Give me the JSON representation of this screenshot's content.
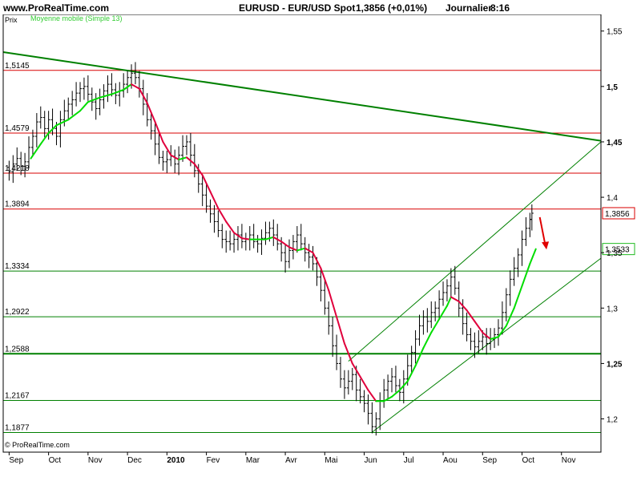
{
  "header": {
    "site": "www.ProRealTime.com",
    "instrument": "EURUSD - EUR/USD Spot",
    "quote": "1,3856 (+0,01%)",
    "period": "Journalier",
    "time": "8:16"
  },
  "chart_data": {
    "type": "candlestick",
    "price_label": "Prix",
    "indicator_label": "Moyenne mobile (Simple 13)",
    "footer": "© ProRealTime.com",
    "x_ticks": [
      {
        "label": "Sep",
        "x": 0
      },
      {
        "label": "Oct",
        "x": 1
      },
      {
        "label": "Nov",
        "x": 2
      },
      {
        "label": "Dec",
        "x": 3
      },
      {
        "label": "2010",
        "x": 4
      },
      {
        "label": "Fev",
        "x": 5
      },
      {
        "label": "Mar",
        "x": 6
      },
      {
        "label": "Avr",
        "x": 7
      },
      {
        "label": "Mai",
        "x": 8
      },
      {
        "label": "Jun",
        "x": 9
      },
      {
        "label": "Jul",
        "x": 10
      },
      {
        "label": "Aou",
        "x": 11
      },
      {
        "label": "Sep",
        "x": 12
      },
      {
        "label": "Oct",
        "x": 13
      },
      {
        "label": "Nov",
        "x": 14
      }
    ],
    "y_ticks": [
      "1,55",
      "1,5",
      "1,45",
      "1,4",
      "1,35",
      "1,3",
      "1,25",
      "1,2"
    ],
    "y_tick_values": [
      1.55,
      1.5,
      1.45,
      1.4,
      1.35,
      1.3,
      1.25,
      1.2
    ],
    "ylim": [
      1.17,
      1.565
    ],
    "xlim": [
      -0.15,
      15.0
    ],
    "levels": [
      {
        "label": "1,5145",
        "value": 1.5145,
        "color": "#d80000"
      },
      {
        "label": "1,4579",
        "value": 1.4579,
        "color": "#d80000"
      },
      {
        "label": "1,4218",
        "value": 1.4218,
        "color": "#d80000"
      },
      {
        "label": "1,3894",
        "value": 1.3894,
        "color": "#d80000"
      },
      {
        "label": "1,3334",
        "value": 1.3334,
        "color": "#008000"
      },
      {
        "label": "1,2922",
        "value": 1.2922,
        "color": "#008000"
      },
      {
        "label": "1,2588",
        "value": 1.2588,
        "color": "#008000"
      },
      {
        "label": "1,2167",
        "value": 1.2167,
        "color": "#008000"
      },
      {
        "label": "1,1877",
        "value": 1.1877,
        "color": "#008000"
      }
    ],
    "current_price": {
      "label": "1,3856",
      "value": 1.3856
    },
    "moving_average_last": {
      "label": "1,3533",
      "value": 1.3533
    },
    "trendlines": [
      {
        "x1": -0.15,
        "y1": 1.531,
        "x2": 15.0,
        "y2": 1.451,
        "color": "#008000",
        "width": 2
      },
      {
        "x1": 8.6,
        "y1": 1.252,
        "x2": 15.0,
        "y2": 1.45,
        "color": "#008000",
        "width": 1
      },
      {
        "x1": 9.2,
        "y1": 1.188,
        "x2": 15.0,
        "y2": 1.345,
        "color": "#008000",
        "width": 1
      }
    ],
    "arrow": {
      "x1": 13.45,
      "y1": 1.382,
      "x2": 13.6,
      "y2": 1.355,
      "color": "#e00000"
    },
    "closes": [
      [
        0.0,
        1.423
      ],
      [
        0.1,
        1.43
      ],
      [
        0.2,
        1.435
      ],
      [
        0.3,
        1.428
      ],
      [
        0.4,
        1.432
      ],
      [
        0.5,
        1.445
      ],
      [
        0.6,
        1.455
      ],
      [
        0.7,
        1.468
      ],
      [
        0.8,
        1.472
      ],
      [
        0.9,
        1.462
      ],
      [
        1.0,
        1.47
      ],
      [
        1.1,
        1.462
      ],
      [
        1.2,
        1.455
      ],
      [
        1.3,
        1.47
      ],
      [
        1.4,
        1.478
      ],
      [
        1.5,
        1.484
      ],
      [
        1.6,
        1.488
      ],
      [
        1.7,
        1.494
      ],
      [
        1.8,
        1.498
      ],
      [
        1.9,
        1.5
      ],
      [
        2.0,
        1.493
      ],
      [
        2.1,
        1.486
      ],
      [
        2.2,
        1.48
      ],
      [
        2.3,
        1.488
      ],
      [
        2.4,
        1.496
      ],
      [
        2.5,
        1.502
      ],
      [
        2.6,
        1.497
      ],
      [
        2.7,
        1.492
      ],
      [
        2.8,
        1.496
      ],
      [
        2.9,
        1.502
      ],
      [
        3.0,
        1.508
      ],
      [
        3.1,
        1.512
      ],
      [
        3.2,
        1.508
      ],
      [
        3.3,
        1.498
      ],
      [
        3.4,
        1.484
      ],
      [
        3.5,
        1.47
      ],
      [
        3.6,
        1.46
      ],
      [
        3.7,
        1.448
      ],
      [
        3.8,
        1.436
      ],
      [
        3.9,
        1.432
      ],
      [
        4.0,
        1.434
      ],
      [
        4.1,
        1.437
      ],
      [
        4.2,
        1.43
      ],
      [
        4.3,
        1.438
      ],
      [
        4.4,
        1.446
      ],
      [
        4.5,
        1.45
      ],
      [
        4.6,
        1.438
      ],
      [
        4.7,
        1.424
      ],
      [
        4.8,
        1.412
      ],
      [
        4.9,
        1.402
      ],
      [
        5.0,
        1.392
      ],
      [
        5.1,
        1.385
      ],
      [
        5.2,
        1.378
      ],
      [
        5.3,
        1.37
      ],
      [
        5.4,
        1.362
      ],
      [
        5.5,
        1.36
      ],
      [
        5.6,
        1.358
      ],
      [
        5.7,
        1.362
      ],
      [
        5.8,
        1.366
      ],
      [
        5.9,
        1.36
      ],
      [
        6.0,
        1.362
      ],
      [
        6.1,
        1.366
      ],
      [
        6.2,
        1.36
      ],
      [
        6.3,
        1.358
      ],
      [
        6.4,
        1.363
      ],
      [
        6.5,
        1.368
      ],
      [
        6.6,
        1.372
      ],
      [
        6.7,
        1.366
      ],
      [
        6.8,
        1.358
      ],
      [
        6.9,
        1.35
      ],
      [
        7.0,
        1.342
      ],
      [
        7.1,
        1.352
      ],
      [
        7.2,
        1.36
      ],
      [
        7.3,
        1.366
      ],
      [
        7.4,
        1.358
      ],
      [
        7.5,
        1.35
      ],
      [
        7.6,
        1.346
      ],
      [
        7.7,
        1.34
      ],
      [
        7.8,
        1.328
      ],
      [
        7.9,
        1.316
      ],
      [
        8.0,
        1.3
      ],
      [
        8.1,
        1.284
      ],
      [
        8.2,
        1.266
      ],
      [
        8.3,
        1.25
      ],
      [
        8.4,
        1.236
      ],
      [
        8.5,
        1.228
      ],
      [
        8.6,
        1.234
      ],
      [
        8.7,
        1.24
      ],
      [
        8.8,
        1.226
      ],
      [
        8.9,
        1.22
      ],
      [
        9.0,
        1.214
      ],
      [
        9.1,
        1.205
      ],
      [
        9.2,
        1.193
      ],
      [
        9.3,
        1.2
      ],
      [
        9.4,
        1.216
      ],
      [
        9.5,
        1.226
      ],
      [
        9.6,
        1.234
      ],
      [
        9.7,
        1.238
      ],
      [
        9.8,
        1.23
      ],
      [
        9.9,
        1.224
      ],
      [
        10.0,
        1.236
      ],
      [
        10.1,
        1.248
      ],
      [
        10.2,
        1.26
      ],
      [
        10.3,
        1.272
      ],
      [
        10.4,
        1.284
      ],
      [
        10.5,
        1.292
      ],
      [
        10.6,
        1.288
      ],
      [
        10.7,
        1.296
      ],
      [
        10.8,
        1.3
      ],
      [
        10.9,
        1.308
      ],
      [
        11.0,
        1.314
      ],
      [
        11.1,
        1.32
      ],
      [
        11.2,
        1.328
      ],
      [
        11.3,
        1.318
      ],
      [
        11.4,
        1.3
      ],
      [
        11.5,
        1.286
      ],
      [
        11.6,
        1.276
      ],
      [
        11.7,
        1.27
      ],
      [
        11.8,
        1.265
      ],
      [
        11.9,
        1.27
      ],
      [
        12.0,
        1.274
      ],
      [
        12.1,
        1.268
      ],
      [
        12.2,
        1.272
      ],
      [
        12.3,
        1.276
      ],
      [
        12.4,
        1.282
      ],
      [
        12.5,
        1.296
      ],
      [
        12.6,
        1.312
      ],
      [
        12.7,
        1.326
      ],
      [
        12.8,
        1.336
      ],
      [
        12.9,
        1.348
      ],
      [
        13.0,
        1.362
      ],
      [
        13.1,
        1.372
      ],
      [
        13.2,
        1.38
      ],
      [
        13.25,
        1.3856
      ]
    ],
    "ma_points": [
      [
        0.55,
        1.435
      ],
      [
        0.8,
        1.448
      ],
      [
        1.0,
        1.458
      ],
      [
        1.2,
        1.465
      ],
      [
        1.5,
        1.47
      ],
      [
        1.8,
        1.478
      ],
      [
        2.0,
        1.486
      ],
      [
        2.3,
        1.49
      ],
      [
        2.6,
        1.493
      ],
      [
        2.9,
        1.497
      ],
      [
        3.1,
        1.502
      ],
      [
        3.3,
        1.498
      ],
      [
        3.5,
        1.485
      ],
      [
        3.7,
        1.468
      ],
      [
        3.9,
        1.45
      ],
      [
        4.1,
        1.438
      ],
      [
        4.3,
        1.434
      ],
      [
        4.5,
        1.436
      ],
      [
        4.7,
        1.43
      ],
      [
        4.9,
        1.42
      ],
      [
        5.1,
        1.405
      ],
      [
        5.3,
        1.39
      ],
      [
        5.5,
        1.378
      ],
      [
        5.7,
        1.368
      ],
      [
        5.9,
        1.363
      ],
      [
        6.1,
        1.362
      ],
      [
        6.3,
        1.362
      ],
      [
        6.5,
        1.362
      ],
      [
        6.7,
        1.364
      ],
      [
        6.9,
        1.36
      ],
      [
        7.1,
        1.355
      ],
      [
        7.3,
        1.352
      ],
      [
        7.5,
        1.354
      ],
      [
        7.7,
        1.35
      ],
      [
        7.9,
        1.336
      ],
      [
        8.1,
        1.316
      ],
      [
        8.3,
        1.292
      ],
      [
        8.5,
        1.268
      ],
      [
        8.7,
        1.25
      ],
      [
        8.9,
        1.238
      ],
      [
        9.1,
        1.226
      ],
      [
        9.3,
        1.216
      ],
      [
        9.5,
        1.216
      ],
      [
        9.7,
        1.22
      ],
      [
        9.9,
        1.226
      ],
      [
        10.1,
        1.234
      ],
      [
        10.3,
        1.248
      ],
      [
        10.5,
        1.264
      ],
      [
        10.7,
        1.278
      ],
      [
        10.9,
        1.29
      ],
      [
        11.1,
        1.302
      ],
      [
        11.2,
        1.31
      ],
      [
        11.4,
        1.306
      ],
      [
        11.6,
        1.298
      ],
      [
        11.8,
        1.288
      ],
      [
        12.0,
        1.278
      ],
      [
        12.2,
        1.272
      ],
      [
        12.4,
        1.274
      ],
      [
        12.6,
        1.284
      ],
      [
        12.8,
        1.3
      ],
      [
        13.0,
        1.32
      ],
      [
        13.2,
        1.34
      ],
      [
        13.35,
        1.3533
      ]
    ],
    "ma_colors": {
      "up": "#00dd00",
      "down": "#e0003c"
    }
  }
}
